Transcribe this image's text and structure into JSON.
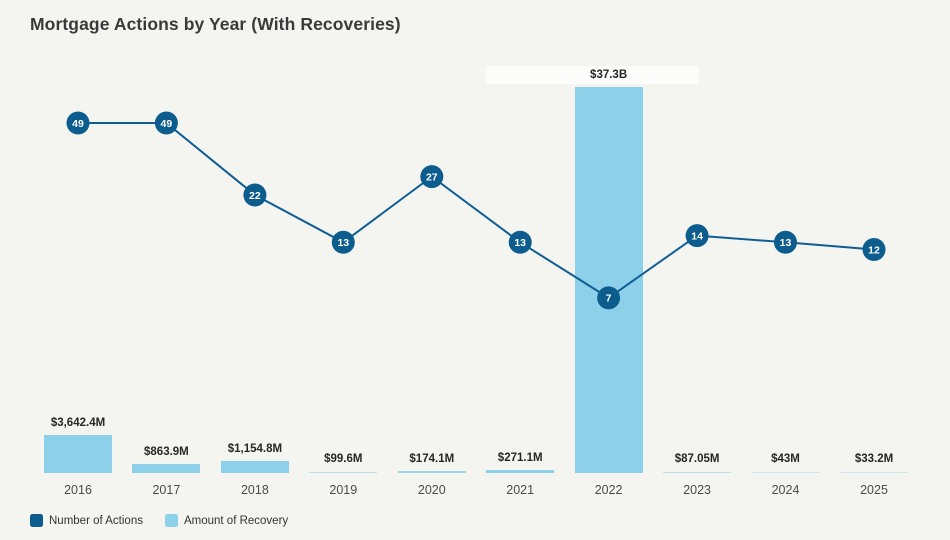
{
  "title": "Mortgage Actions by Year (With Recoveries)",
  "colors": {
    "background": "#f4f4f1",
    "title_text": "#3a3a3a",
    "line": "#0e5e93",
    "marker_fill": "#0d5c8e",
    "marker_text": "#ffffff",
    "bar_fill": "#8dd0ea",
    "value_label_text": "#262626",
    "year_label_text": "#4b4b4b",
    "legend_text": "#333333",
    "highlight_band": "rgba(255,255,255,0.72)"
  },
  "legend": {
    "items": [
      {
        "label": "Number of Actions",
        "color": "#0d5c8e"
      },
      {
        "label": "Amount of Recovery",
        "color": "#8dd0ea"
      }
    ]
  },
  "chart_data": {
    "type": "bar+line combo",
    "title": "Mortgage Actions by Year (With Recoveries)",
    "categories": [
      "2016",
      "2017",
      "2018",
      "2019",
      "2020",
      "2021",
      "2022",
      "2023",
      "2024",
      "2025"
    ],
    "series": [
      {
        "name": "Number of Actions",
        "type": "line",
        "axis_scale": "log",
        "values": [
          49,
          49,
          22,
          13,
          27,
          13,
          7,
          14,
          13,
          12
        ],
        "point_labels": [
          "49",
          "49",
          "22",
          "13",
          "27",
          "13",
          "7",
          "14",
          "13",
          "12"
        ]
      },
      {
        "name": "Amount of Recovery",
        "type": "bar",
        "axis_scale": "linear",
        "values_millions_usd": [
          3642.4,
          863.9,
          1154.8,
          99.6,
          174.1,
          271.1,
          37300,
          87.05,
          43,
          33.2
        ],
        "bar_labels": [
          "$3,642.4M",
          "$863.9M",
          "$1,154.8M",
          "$99.6M",
          "$174.1M",
          "$271.1M",
          "$37.3B",
          "$87.05M",
          "$43M",
          "$33.2M"
        ]
      }
    ],
    "xlabel": "",
    "ylabel": "",
    "grid": "off",
    "legend_position": "bottom-left",
    "highlighted_value_label": "$37.3B"
  }
}
